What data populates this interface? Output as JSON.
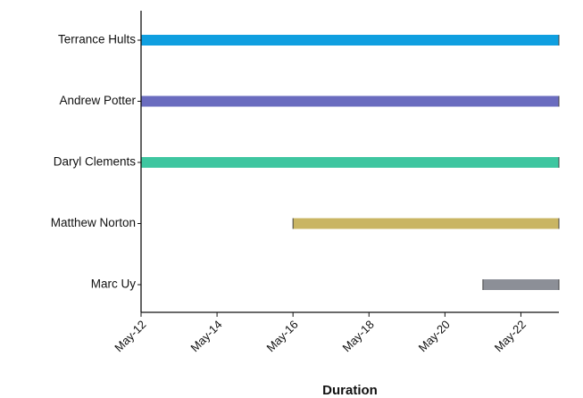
{
  "chart_data": {
    "type": "bar",
    "orientation": "horizontal",
    "subtype": "gantt",
    "title": "",
    "xlabel": "Duration",
    "ylabel": "",
    "x_tick_labels": [
      "May-12",
      "May-14",
      "May-16",
      "May-18",
      "May-20",
      "May-22"
    ],
    "x_tick_values": [
      "2023-05-12",
      "2023-05-14",
      "2023-05-16",
      "2023-05-18",
      "2023-05-20",
      "2023-05-22"
    ],
    "xlim": [
      "2023-05-12",
      "2023-05-23"
    ],
    "grid": false,
    "legend": "none",
    "categories": [
      "Terrance Hults",
      "Andrew Potter",
      "Daryl Clements",
      "Matthew Norton",
      "Marc Uy"
    ],
    "bars": [
      {
        "category": "Terrance Hults",
        "start": "2023-05-12",
        "end": "2023-05-23",
        "color": "#0f9fe0"
      },
      {
        "category": "Andrew Potter",
        "start": "2023-05-12",
        "end": "2023-05-23",
        "color": "#6a6cbf"
      },
      {
        "category": "Daryl Clements",
        "start": "2023-05-12",
        "end": "2023-05-23",
        "color": "#3ec6a0"
      },
      {
        "category": "Matthew Norton",
        "start": "2023-05-16",
        "end": "2023-05-23",
        "color": "#c9b563"
      },
      {
        "category": "Marc Uy",
        "start": "2023-05-21",
        "end": "2023-05-23",
        "color": "#8c8f97"
      }
    ]
  }
}
